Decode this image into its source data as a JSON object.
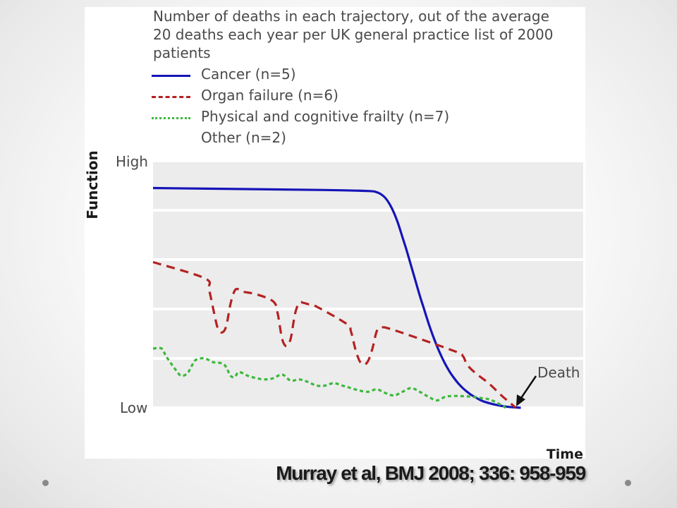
{
  "chart_data": {
    "type": "line",
    "title": "Number of deaths in each trajectory, out of the average 20 deaths each year per UK general practice list of 2000 patients",
    "title_lines": [
      "Number of deaths in each trajectory, out of the average",
      "20 deaths each year per UK general practice list of 2000",
      "patients"
    ],
    "xlabel": "Time",
    "ylabel": "Function",
    "y_tick_labels": {
      "high": "High",
      "low": "Low"
    },
    "annotation": "Death",
    "xlim": [
      0,
      100
    ],
    "ylim": [
      0,
      100
    ],
    "grid": "horizontal bands",
    "legend_position": "top",
    "series": [
      {
        "name": "Cancer (n=5)",
        "color": "#1515b8",
        "style": "solid",
        "x": [
          0,
          20,
          40,
          50,
          52,
          53,
          54,
          55,
          56,
          57,
          58,
          59,
          60,
          61,
          62,
          63,
          64,
          65,
          66,
          67,
          68,
          69,
          70,
          71,
          72,
          73,
          74,
          75,
          76,
          77,
          79,
          82,
          85.5
        ],
        "y": [
          89,
          88.6,
          88.2,
          87.8,
          87.3,
          86.5,
          85.0,
          82.5,
          79.0,
          74.5,
          69.0,
          63.5,
          57.5,
          51.5,
          45.5,
          40.0,
          34.5,
          29.5,
          25.0,
          21.0,
          17.5,
          14.5,
          12.0,
          9.8,
          8.0,
          6.5,
          5.2,
          4.2,
          3.2,
          2.5,
          1.5,
          0.5,
          0
        ]
      },
      {
        "name": "Organ failure (n=6)",
        "color": "#b52222",
        "style": "dashed",
        "x": [
          0,
          12,
          13,
          14,
          15,
          16,
          17,
          18,
          19,
          20,
          21,
          24,
          28,
          29,
          30,
          31,
          32,
          33,
          34,
          35,
          36,
          38,
          45,
          46,
          47,
          48,
          49,
          50,
          51,
          52,
          53,
          56,
          70,
          72,
          73,
          75,
          78,
          81,
          83,
          84.3
        ],
        "y": [
          59,
          52.5,
          48,
          40,
          32.5,
          30.5,
          33,
          42,
          47.5,
          48,
          47,
          46,
          43,
          38,
          28,
          25,
          28,
          38,
          42.5,
          42.5,
          42,
          41,
          34,
          31,
          24,
          19,
          17.5,
          19,
          24,
          31,
          32.5,
          31.5,
          23,
          21,
          17.5,
          14,
          10,
          5,
          2,
          0
        ]
      },
      {
        "name": "Physical and cognitive frailty (n=7)",
        "color": "#3cb83c",
        "style": "dotted",
        "x": [
          0,
          2,
          3,
          5,
          6.5,
          8,
          9,
          10,
          12,
          14,
          16,
          17,
          18,
          19,
          20,
          22,
          24,
          26,
          28,
          30,
          32,
          34,
          36,
          38,
          40,
          42,
          44,
          46,
          48,
          50,
          52,
          54,
          56,
          58,
          60,
          62,
          64,
          66,
          68,
          70,
          72,
          74,
          76,
          78,
          80,
          82
        ],
        "y": [
          24,
          24,
          21,
          16,
          13,
          14,
          17,
          19.5,
          20,
          18.5,
          18,
          16.5,
          13,
          12.5,
          14.5,
          13,
          12,
          11.5,
          12,
          13.5,
          11,
          11.5,
          10.5,
          9,
          9,
          10,
          9,
          8,
          7,
          6.5,
          7.5,
          6,
          5,
          6.5,
          8,
          6.5,
          4.5,
          3,
          4.5,
          4.8,
          4.7,
          4.5,
          4,
          3.5,
          2,
          0
        ]
      },
      {
        "name": "Other (n=2)",
        "color": "#ffffff",
        "style": "none",
        "x": [],
        "y": []
      }
    ]
  },
  "citation": "Murray et al, BMJ 2008; 336: 958-959",
  "colors": {
    "band_gray": "#ececec",
    "band_white": "#ffffff",
    "text": "#4a4a4a"
  }
}
